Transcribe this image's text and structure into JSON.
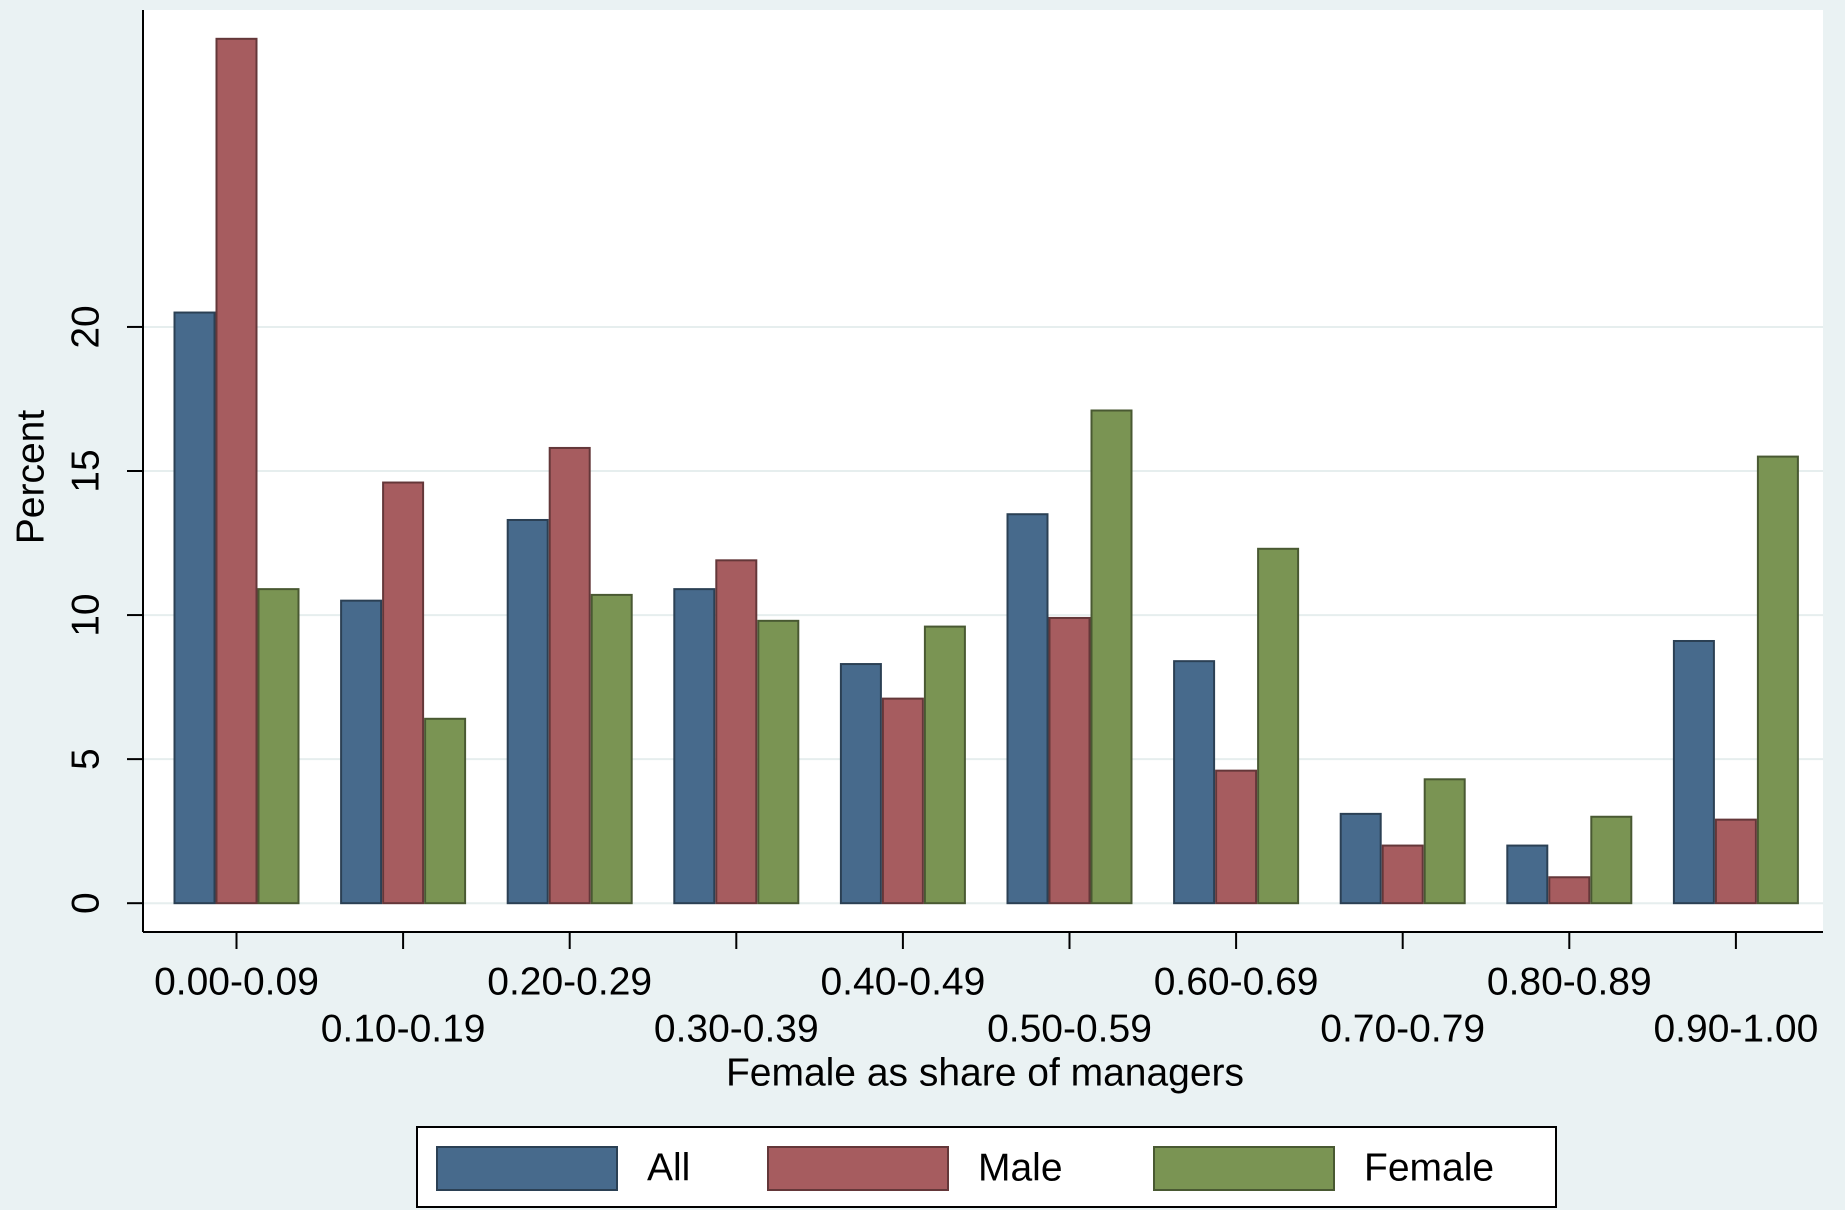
{
  "chart_data": {
    "type": "bar",
    "x_label": "Female as share of managers",
    "y_label": "Percent",
    "categories": [
      "0.00-0.09",
      "0.10-0.19",
      "0.20-0.29",
      "0.30-0.39",
      "0.40-0.49",
      "0.50-0.59",
      "0.60-0.69",
      "0.70-0.79",
      "0.80-0.89",
      "0.90-1.00"
    ],
    "series": [
      {
        "name": "All",
        "color": "#476a8c",
        "values": [
          20.5,
          10.5,
          13.3,
          10.9,
          8.3,
          13.5,
          8.4,
          3.1,
          2.0,
          9.1
        ]
      },
      {
        "name": "Male",
        "color": "#a65c5f",
        "values": [
          30.0,
          14.6,
          15.8,
          11.9,
          7.1,
          9.9,
          4.6,
          2.0,
          0.9,
          2.9
        ]
      },
      {
        "name": "Female",
        "color": "#7a9453",
        "values": [
          10.9,
          6.4,
          10.7,
          9.8,
          9.6,
          17.1,
          12.3,
          4.3,
          3.0,
          15.5
        ]
      }
    ],
    "ylim": [
      -1,
      31
    ],
    "yticks": [
      0,
      5,
      10,
      15,
      20
    ],
    "grid": true,
    "legend": "bottom"
  }
}
